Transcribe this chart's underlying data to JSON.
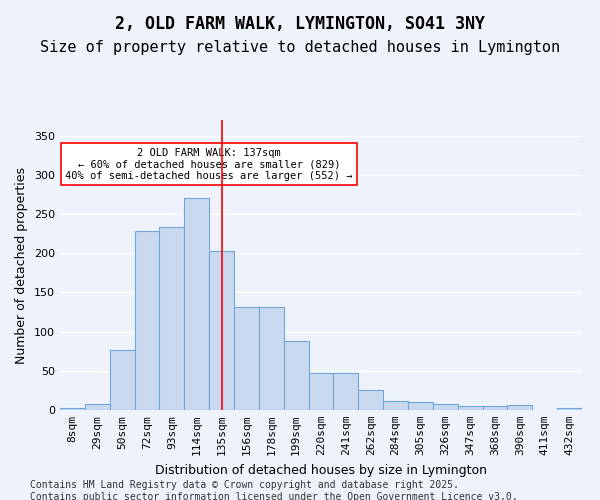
{
  "title1": "2, OLD FARM WALK, LYMINGTON, SO41 3NY",
  "title2": "Size of property relative to detached houses in Lymington",
  "xlabel": "Distribution of detached houses by size in Lymington",
  "ylabel": "Number of detached properties",
  "footnote": "Contains HM Land Registry data © Crown copyright and database right 2025.\nContains public sector information licensed under the Open Government Licence v3.0.",
  "categories": [
    "8sqm",
    "29sqm",
    "50sqm",
    "72sqm",
    "93sqm",
    "114sqm",
    "135sqm",
    "156sqm",
    "178sqm",
    "199sqm",
    "220sqm",
    "241sqm",
    "262sqm",
    "284sqm",
    "305sqm",
    "326sqm",
    "347sqm",
    "368sqm",
    "390sqm",
    "411sqm",
    "432sqm"
  ],
  "values": [
    2,
    8,
    76,
    228,
    234,
    270,
    203,
    131,
    131,
    88,
    47,
    47,
    25,
    12,
    10,
    8,
    5,
    5,
    6,
    0,
    3
  ],
  "bar_color": "#c9d9ef",
  "bar_edge_color": "#6fa8d8",
  "vline_x": 5,
  "vline_color": "red",
  "property_sqm": 137,
  "annotation_text": "2 OLD FARM WALK: 137sqm\n← 60% of detached houses are smaller (829)\n40% of semi-detached houses are larger (552) →",
  "annotation_box_color": "white",
  "annotation_box_edge": "red",
  "ylim": [
    0,
    370
  ],
  "yticks": [
    0,
    50,
    100,
    150,
    200,
    250,
    300,
    350
  ],
  "bg_color": "#eef2fa",
  "plot_bg_color": "#eef2fa",
  "grid_color": "white",
  "title1_fontsize": 12,
  "title2_fontsize": 11,
  "axis_label_fontsize": 9,
  "tick_fontsize": 8,
  "footnote_fontsize": 7
}
